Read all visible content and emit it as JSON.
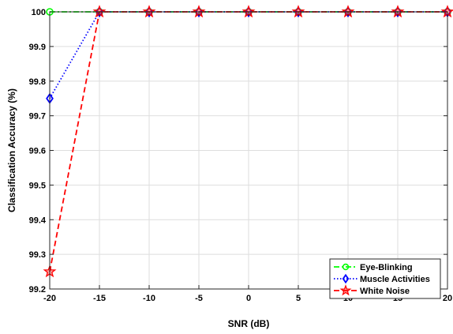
{
  "chart_data": {
    "type": "line",
    "title": "",
    "xlabel": "SNR (dB)",
    "ylabel": "Classification Accuracy (%)",
    "x": [
      -20,
      -15,
      -10,
      -5,
      0,
      5,
      10,
      15,
      20
    ],
    "xlim": [
      -20,
      20
    ],
    "ylim": [
      99.2,
      100
    ],
    "xticks": [
      -20,
      -15,
      -10,
      -5,
      0,
      5,
      10,
      15,
      20
    ],
    "xtick_labels": [
      "-20",
      "-15",
      "-10",
      "-5",
      "0",
      "5",
      "10",
      "15",
      "20"
    ],
    "yticks": [
      99.2,
      99.3,
      99.4,
      99.5,
      99.6,
      99.7,
      99.8,
      99.9,
      100
    ],
    "ytick_labels": [
      "99.2",
      "99.3",
      "99.4",
      "99.5",
      "99.6",
      "99.7",
      "99.8",
      "99.9",
      "100"
    ],
    "grid": true,
    "legend_position": "bottom-right",
    "series": [
      {
        "name": "Eye-Blinking",
        "values": [
          100,
          100,
          100,
          100,
          100,
          100,
          100,
          100,
          100
        ],
        "color": "#00ff00",
        "line_style": "dash-dot",
        "marker": "circle"
      },
      {
        "name": "Muscle Activities",
        "values": [
          99.75,
          100,
          100,
          100,
          100,
          100,
          100,
          100,
          100
        ],
        "color": "#0000ff",
        "line_style": "dotted",
        "marker": "diamond"
      },
      {
        "name": "White Noise",
        "values": [
          99.25,
          100,
          100,
          100,
          100,
          100,
          100,
          100,
          100
        ],
        "color": "#ff0000",
        "line_style": "dashed",
        "marker": "star"
      }
    ]
  }
}
